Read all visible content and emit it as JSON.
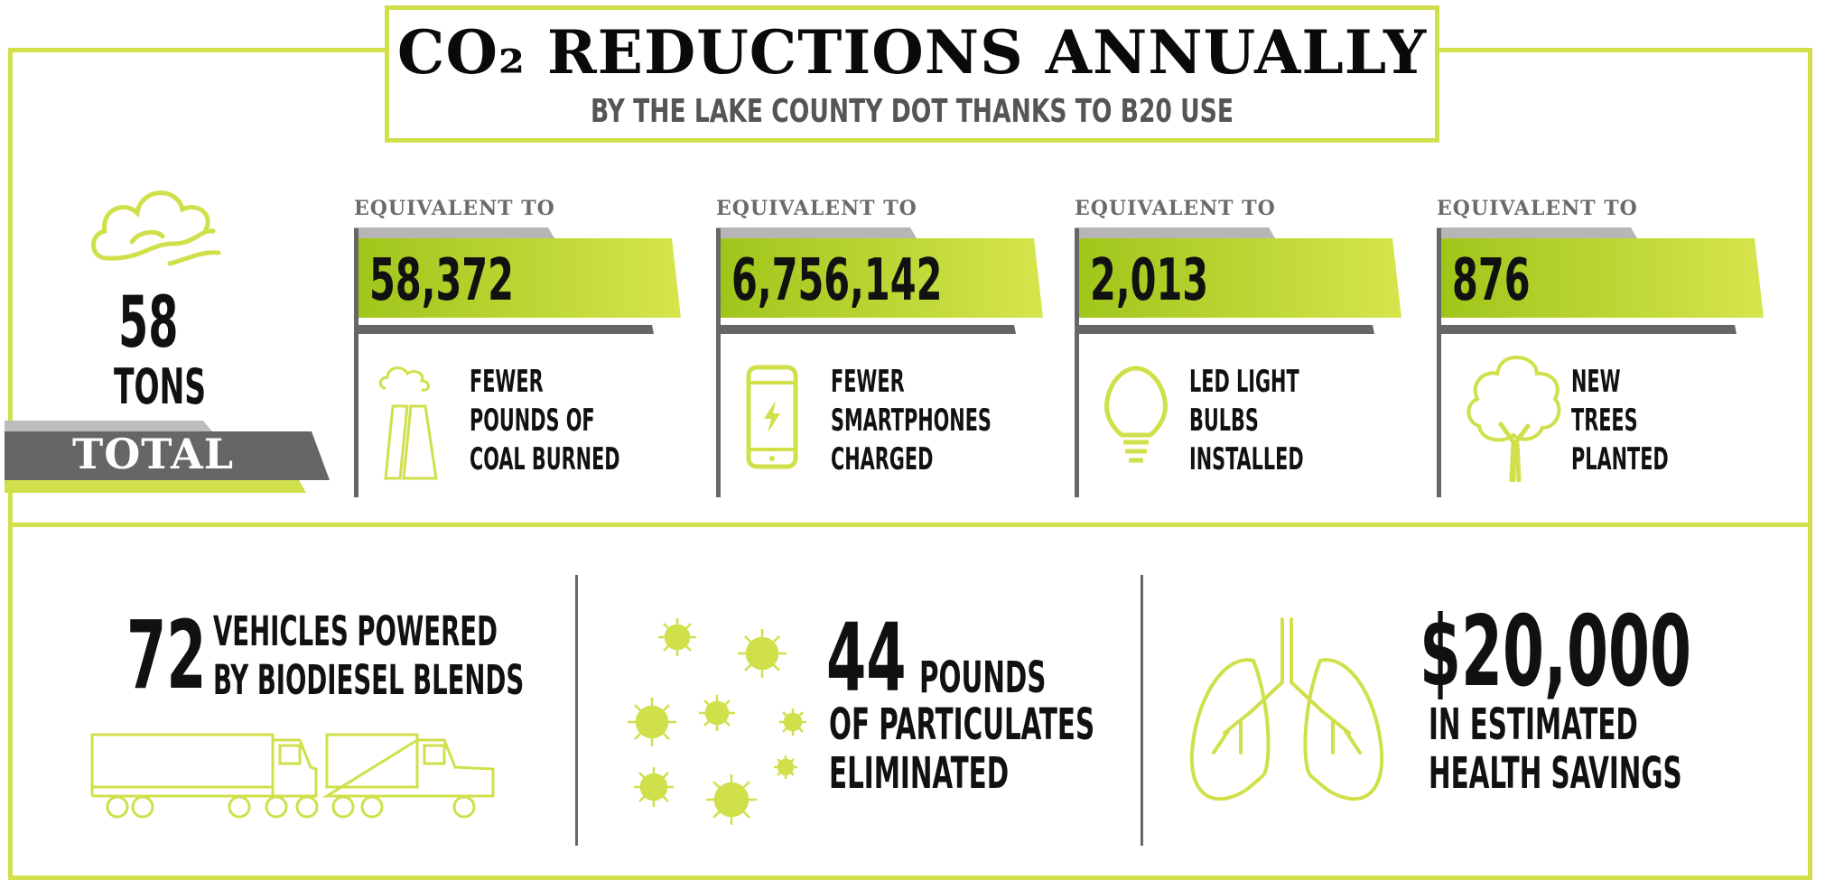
{
  "header": {
    "title": "CO₂ REDUCTIONS ANNUALLY",
    "subtitle": "BY THE LAKE COUNTY DOT THANKS TO B20 USE"
  },
  "total": {
    "value": "58",
    "unit": "TONS",
    "label": "TOTAL",
    "icon": "cloud-icon"
  },
  "equivalents": [
    {
      "prefix": "EQUIVALENT TO",
      "value": "58,372",
      "line1": "FEWER",
      "line2": "POUNDS OF",
      "line3": "COAL BURNED",
      "icon": "power-plant-icon"
    },
    {
      "prefix": "EQUIVALENT TO",
      "value": "6,756,142",
      "line1": "FEWER",
      "line2": "SMARTPHONES",
      "line3": "CHARGED",
      "icon": "smartphone-icon"
    },
    {
      "prefix": "EQUIVALENT TO",
      "value": "2,013",
      "line1": "LED LIGHT",
      "line2": "BULBS",
      "line3": "INSTALLED",
      "icon": "lightbulb-icon"
    },
    {
      "prefix": "EQUIVALENT TO",
      "value": "876",
      "line1": "NEW",
      "line2": "TREES",
      "line3": "PLANTED",
      "icon": "tree-icon"
    }
  ],
  "bottom": {
    "vehicles": {
      "value": "72",
      "line1": "VEHICLES POWERED",
      "line2": "BY BIODIESEL BLENDS",
      "icon": "truck-icon"
    },
    "particulates": {
      "value": "44",
      "unit": "POUNDS",
      "line1": "OF PARTICULATES",
      "line2": "ELIMINATED",
      "icon": "particle-icon"
    },
    "health": {
      "value": "$20,000",
      "line1": "IN ESTIMATED",
      "line2": "HEALTH SAVINGS",
      "icon": "lungs-icon"
    }
  },
  "colors": {
    "accent": "#cfe04a",
    "band_light": "#c8dd3e",
    "band_dark": "#a4c81f",
    "gray": "#666666",
    "text": "#111111"
  }
}
